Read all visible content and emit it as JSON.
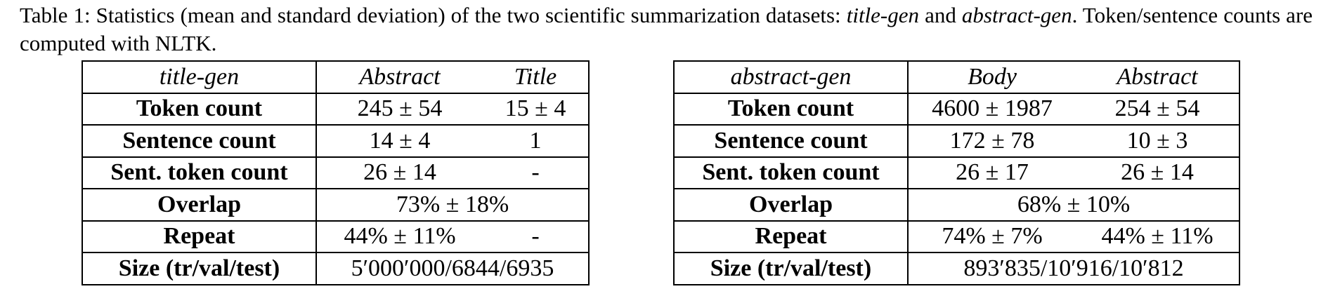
{
  "caption": {
    "label": "Table 1:",
    "text_before": "Statistics (mean and standard deviation) of the two scientific summarization datasets: ",
    "dataset_a": "title-gen",
    "connector": "and",
    "dataset_b": "abstract-gen",
    "text_after": ". Token/sentence counts are computed with NLTK."
  },
  "tables": [
    {
      "header": [
        "title-gen",
        "Abstract",
        "Title"
      ],
      "rows": [
        {
          "label": "Token count",
          "cells": [
            "245 ± 54",
            "15 ± 4"
          ]
        },
        {
          "label": "Sentence count",
          "cells": [
            "14 ± 4",
            "1"
          ]
        },
        {
          "label": "Sent. token count",
          "cells": [
            "26 ± 14",
            "-"
          ]
        },
        {
          "label": "Overlap",
          "merged": "73% ± 18%"
        },
        {
          "label": "Repeat",
          "cells": [
            "44% ± 11%",
            "-"
          ]
        },
        {
          "label": "Size (tr/val/test)",
          "merged": "5′000′000/6844/6935"
        }
      ]
    },
    {
      "header": [
        "abstract-gen",
        "Body",
        "Abstract"
      ],
      "rows": [
        {
          "label": "Token count",
          "cells": [
            "4600 ± 1987",
            "254 ± 54"
          ]
        },
        {
          "label": "Sentence count",
          "cells": [
            "172 ± 78",
            "10 ± 3"
          ]
        },
        {
          "label": "Sent. token count",
          "cells": [
            "26 ± 17",
            "26 ± 14"
          ]
        },
        {
          "label": "Overlap",
          "merged": "68% ± 10%"
        },
        {
          "label": "Repeat",
          "cells": [
            "74% ± 7%",
            "44% ± 11%"
          ]
        },
        {
          "label": "Size (tr/val/test)",
          "merged": "893′835/10′916/10′812"
        }
      ]
    }
  ]
}
